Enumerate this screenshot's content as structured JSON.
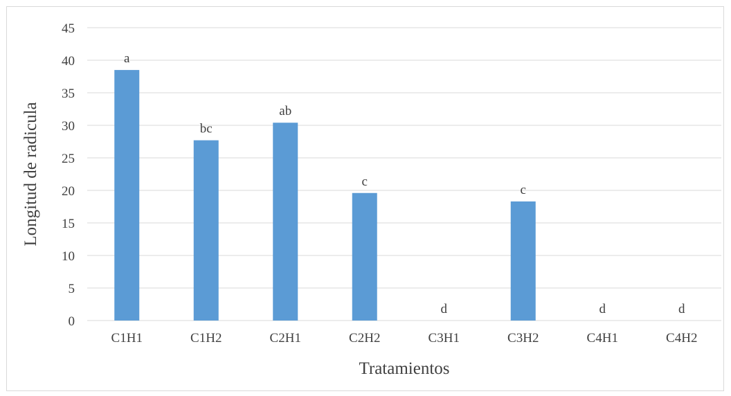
{
  "chart_data": {
    "type": "bar",
    "title": "",
    "xlabel": "Tratamientos",
    "ylabel": "Longitud de radicula",
    "categories": [
      "C1H1",
      "C1H2",
      "C2H1",
      "C2H2",
      "C3H1",
      "C3H2",
      "C4H1",
      "C4H2"
    ],
    "values": [
      38.5,
      27.7,
      30.4,
      19.6,
      0,
      18.3,
      0,
      0
    ],
    "data_labels": [
      "a",
      "bc",
      "ab",
      "c",
      "d",
      "c",
      "d",
      "d"
    ],
    "ylim": [
      0,
      45
    ],
    "yticks": [
      0,
      5,
      10,
      15,
      20,
      25,
      30,
      35,
      40,
      45
    ],
    "grid": true,
    "legend": "none",
    "bar_color": "#5b9bd5"
  }
}
